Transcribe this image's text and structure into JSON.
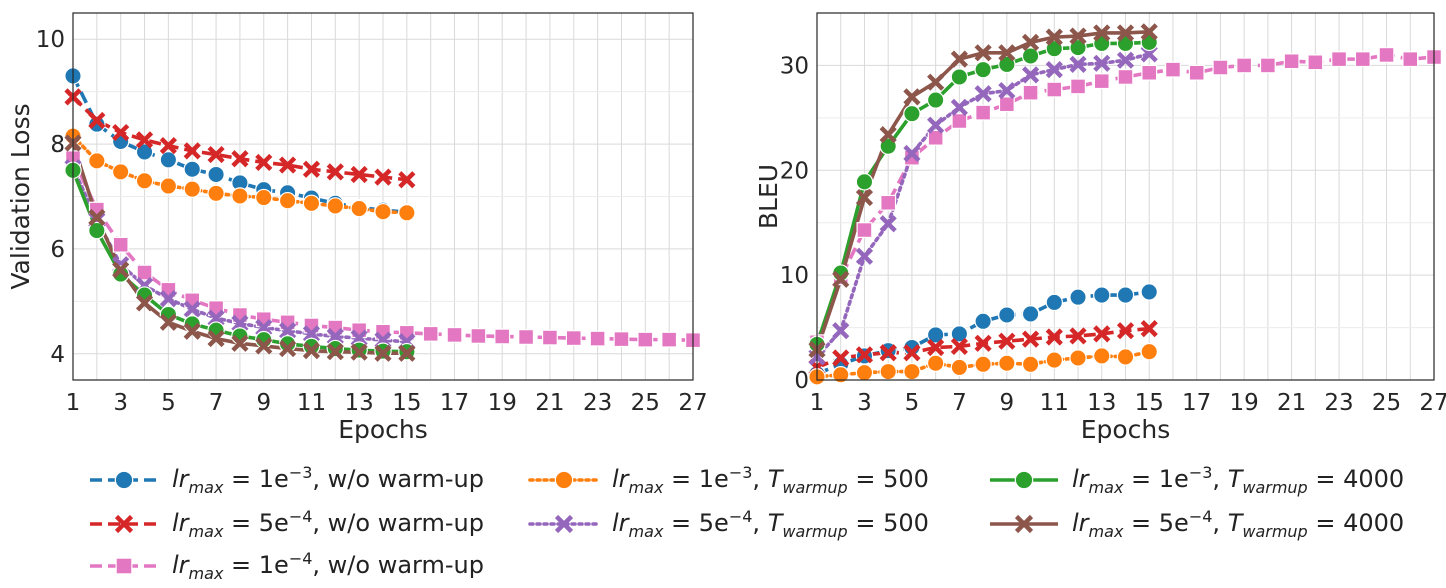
{
  "chart_data": [
    {
      "type": "line",
      "xlabel": "Epochs",
      "ylabel": "Validation Loss",
      "xlim": [
        1,
        27
      ],
      "ylim": [
        3.5,
        10.5
      ],
      "xticks": [
        1,
        3,
        5,
        7,
        9,
        11,
        13,
        15,
        17,
        19,
        21,
        23,
        25,
        27
      ],
      "yticks": [
        4,
        6,
        8,
        10
      ],
      "grid": true,
      "series": [
        {
          "key": "s1",
          "x": [
            1,
            2,
            3,
            4,
            5,
            6,
            7,
            8,
            9,
            10,
            11,
            12,
            13,
            14,
            15
          ],
          "values": [
            9.3,
            8.38,
            8.05,
            7.85,
            7.7,
            7.52,
            7.42,
            7.26,
            7.13,
            7.07,
            6.97,
            6.87,
            6.79,
            6.74,
            6.7
          ]
        },
        {
          "key": "s2",
          "x": [
            1,
            2,
            3,
            4,
            5,
            6,
            7,
            8,
            9,
            10,
            11,
            12,
            13,
            14,
            15
          ],
          "values": [
            8.9,
            8.45,
            8.22,
            8.08,
            7.97,
            7.87,
            7.8,
            7.72,
            7.65,
            7.6,
            7.52,
            7.47,
            7.42,
            7.37,
            7.32
          ]
        },
        {
          "key": "s3",
          "x": [
            1,
            2,
            3,
            4,
            5,
            6,
            7,
            8,
            9,
            10,
            11,
            12,
            13,
            14,
            15,
            16,
            17,
            18,
            19,
            20,
            21,
            22,
            23,
            24,
            25,
            26,
            27
          ],
          "values": [
            7.73,
            6.75,
            6.08,
            5.55,
            5.22,
            5.02,
            4.87,
            4.74,
            4.66,
            4.6,
            4.54,
            4.5,
            4.45,
            4.42,
            4.4,
            4.38,
            4.36,
            4.34,
            4.33,
            4.32,
            4.31,
            4.3,
            4.29,
            4.28,
            4.27,
            4.27,
            4.26
          ]
        },
        {
          "key": "s4",
          "x": [
            1,
            2,
            3,
            4,
            5,
            6,
            7,
            8,
            9,
            10,
            11,
            12,
            13,
            14,
            15
          ],
          "values": [
            8.15,
            7.68,
            7.47,
            7.3,
            7.2,
            7.14,
            7.06,
            7.01,
            6.98,
            6.92,
            6.87,
            6.82,
            6.77,
            6.71,
            6.69
          ]
        },
        {
          "key": "s5",
          "x": [
            1,
            2,
            3,
            4,
            5,
            6,
            7,
            8,
            9,
            10,
            11,
            12,
            13,
            14,
            15
          ],
          "values": [
            7.55,
            6.55,
            5.7,
            5.3,
            5.05,
            4.85,
            4.68,
            4.58,
            4.5,
            4.44,
            4.38,
            4.33,
            4.3,
            4.26,
            4.23
          ]
        },
        {
          "key": "s6",
          "x": [
            1,
            2,
            3,
            4,
            5,
            6,
            7,
            8,
            9,
            10,
            11,
            12,
            13,
            14,
            15
          ],
          "values": [
            7.5,
            6.35,
            5.52,
            5.12,
            4.75,
            4.57,
            4.45,
            4.34,
            4.27,
            4.19,
            4.14,
            4.1,
            4.07,
            4.05,
            4.04
          ]
        },
        {
          "key": "s7",
          "x": [
            1,
            2,
            3,
            4,
            5,
            6,
            7,
            8,
            9,
            10,
            11,
            12,
            13,
            14,
            15
          ],
          "values": [
            8.02,
            6.6,
            5.6,
            4.97,
            4.6,
            4.43,
            4.29,
            4.2,
            4.15,
            4.1,
            4.06,
            4.04,
            4.03,
            4.01,
            4.01
          ]
        }
      ]
    },
    {
      "type": "line",
      "xlabel": "Epochs",
      "ylabel": "BLEU",
      "xlim": [
        1,
        27
      ],
      "ylim": [
        0,
        35
      ],
      "xticks": [
        1,
        3,
        5,
        7,
        9,
        11,
        13,
        15,
        17,
        19,
        21,
        23,
        25,
        27
      ],
      "yticks": [
        0,
        10,
        20,
        30
      ],
      "grid": true,
      "series": [
        {
          "key": "s1",
          "x": [
            1,
            2,
            3,
            4,
            5,
            6,
            7,
            8,
            9,
            10,
            11,
            12,
            13,
            14,
            15
          ],
          "values": [
            0.6,
            1.5,
            2.3,
            2.8,
            3.1,
            4.3,
            4.4,
            5.6,
            6.2,
            6.3,
            7.4,
            7.9,
            8.1,
            8.1,
            8.4
          ]
        },
        {
          "key": "s2",
          "x": [
            1,
            2,
            3,
            4,
            5,
            6,
            7,
            8,
            9,
            10,
            11,
            12,
            13,
            14,
            15
          ],
          "values": [
            1.2,
            2.1,
            2.4,
            2.6,
            2.6,
            3.1,
            3.2,
            3.5,
            3.7,
            3.9,
            4.1,
            4.2,
            4.4,
            4.7,
            4.9
          ]
        },
        {
          "key": "s3",
          "x": [
            1,
            2,
            3,
            4,
            5,
            6,
            7,
            8,
            9,
            10,
            11,
            12,
            13,
            14,
            15,
            16,
            17,
            18,
            19,
            20,
            21,
            22,
            23,
            24,
            25,
            26,
            27
          ],
          "values": [
            3.6,
            9.8,
            14.3,
            16.9,
            21.2,
            23.1,
            24.7,
            25.5,
            26.3,
            27.4,
            27.7,
            28.0,
            28.5,
            28.9,
            29.3,
            29.6,
            29.3,
            29.8,
            30.0,
            30.0,
            30.4,
            30.3,
            30.6,
            30.6,
            31.0,
            30.6,
            30.8
          ]
        },
        {
          "key": "s4",
          "x": [
            1,
            2,
            3,
            4,
            5,
            6,
            7,
            8,
            9,
            10,
            11,
            12,
            13,
            14,
            15
          ],
          "values": [
            0.3,
            0.5,
            0.7,
            0.8,
            0.8,
            1.6,
            1.2,
            1.5,
            1.6,
            1.5,
            1.9,
            2.1,
            2.3,
            2.2,
            2.7
          ]
        },
        {
          "key": "s5",
          "x": [
            1,
            2,
            3,
            4,
            5,
            6,
            7,
            8,
            9,
            10,
            11,
            12,
            13,
            14,
            15
          ],
          "values": [
            2.2,
            4.7,
            11.8,
            14.9,
            21.6,
            24.3,
            26.0,
            27.3,
            27.6,
            29.1,
            29.6,
            30.1,
            30.2,
            30.5,
            31.1
          ]
        },
        {
          "key": "s6",
          "x": [
            1,
            2,
            3,
            4,
            5,
            6,
            7,
            8,
            9,
            10,
            11,
            12,
            13,
            14,
            15
          ],
          "values": [
            3.4,
            10.2,
            18.9,
            22.3,
            25.4,
            26.7,
            28.9,
            29.6,
            30.1,
            30.9,
            31.6,
            31.7,
            32.1,
            32.1,
            32.2
          ]
        },
        {
          "key": "s7",
          "x": [
            1,
            2,
            3,
            4,
            5,
            6,
            7,
            8,
            9,
            10,
            11,
            12,
            13,
            14,
            15
          ],
          "values": [
            2.9,
            9.6,
            17.4,
            23.4,
            27.0,
            28.4,
            30.6,
            31.2,
            31.2,
            32.2,
            32.7,
            32.8,
            33.1,
            33.1,
            33.2
          ]
        }
      ]
    }
  ],
  "series_styles": {
    "s1": {
      "color": "#1f77b4",
      "dash": "dashed",
      "marker": "circle"
    },
    "s2": {
      "color": "#d62728",
      "dash": "dashed",
      "marker": "x"
    },
    "s3": {
      "color": "#e377c2",
      "dash": "dashed",
      "marker": "square"
    },
    "s4": {
      "color": "#ff7f0e",
      "dash": "dotted",
      "marker": "circle"
    },
    "s5": {
      "color": "#9467bd",
      "dash": "dotted",
      "marker": "x"
    },
    "s6": {
      "color": "#2ca02c",
      "dash": "solid",
      "marker": "circle"
    },
    "s7": {
      "color": "#8c564b",
      "dash": "solid",
      "marker": "x"
    }
  },
  "legend": {
    "placement": "bottom",
    "items": [
      {
        "key": "s1",
        "lr": "lr",
        "lr_sub": "max",
        "base": "1e",
        "exp": "−3",
        "suffix": ", w/o warm-up",
        "t": "",
        "t_sub": "",
        "t_val": ""
      },
      {
        "key": "s2",
        "lr": "lr",
        "lr_sub": "max",
        "base": "5e",
        "exp": "−4",
        "suffix": ", w/o warm-up",
        "t": "",
        "t_sub": "",
        "t_val": ""
      },
      {
        "key": "s3",
        "lr": "lr",
        "lr_sub": "max",
        "base": "1e",
        "exp": "−4",
        "suffix": ", w/o warm-up",
        "t": "",
        "t_sub": "",
        "t_val": ""
      },
      {
        "key": "s4",
        "lr": "lr",
        "lr_sub": "max",
        "base": "1e",
        "exp": "−3",
        "suffix": ", ",
        "t": "T",
        "t_sub": "warmup",
        "t_val": "500"
      },
      {
        "key": "s5",
        "lr": "lr",
        "lr_sub": "max",
        "base": "5e",
        "exp": "−4",
        "suffix": ", ",
        "t": "T",
        "t_sub": "warmup",
        "t_val": "500"
      },
      {
        "key": "s6",
        "lr": "lr",
        "lr_sub": "max",
        "base": "1e",
        "exp": "−3",
        "suffix": ", ",
        "t": "T",
        "t_sub": "warmup",
        "t_val": "4000"
      },
      {
        "key": "s7",
        "lr": "lr",
        "lr_sub": "max",
        "base": "5e",
        "exp": "−4",
        "suffix": ", ",
        "t": "T",
        "t_sub": "warmup",
        "t_val": "4000"
      }
    ]
  }
}
